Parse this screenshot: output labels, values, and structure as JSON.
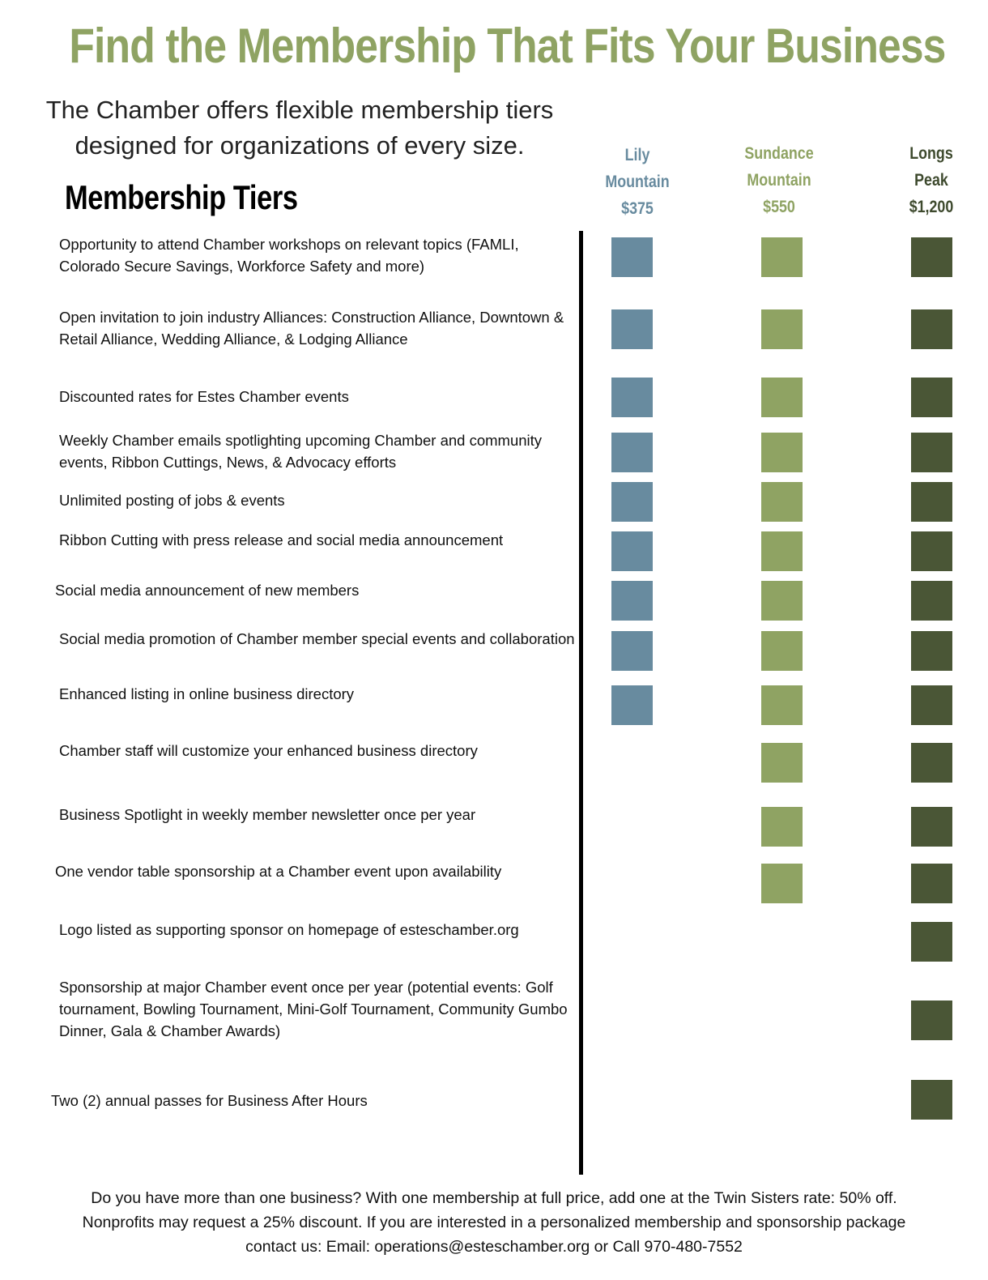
{
  "header": {
    "title": "Find the Membership That Fits Your Business",
    "intro_line1": "The Chamber offers flexible membership tiers",
    "intro_line2": "designed for organizations of every size.",
    "section_heading": "Membership Tiers"
  },
  "tiers": [
    {
      "name_line1": "Lily",
      "name_line2": "Mountain",
      "price": "$375",
      "color": "#688b9f"
    },
    {
      "name_line1": "Sundance",
      "name_line2": "Mountain",
      "price": "$550",
      "color": "#8fa363"
    },
    {
      "name_line1": "Longs",
      "name_line2": "Peak",
      "price": "$1,200",
      "color": "#4a5636"
    }
  ],
  "features": [
    {
      "text": "Opportunity to attend Chamber workshops on relevant topics (FAMLI, Colorado Secure Savings, Workforce Safety and more)",
      "included": [
        true,
        true,
        true
      ]
    },
    {
      "text": "Open invitation to join industry Alliances: Construction Alliance, Downtown & Retail Alliance, Wedding Alliance, & Lodging Alliance",
      "included": [
        true,
        true,
        true
      ]
    },
    {
      "text": "Discounted rates for Estes Chamber events",
      "included": [
        true,
        true,
        true
      ]
    },
    {
      "text": "Weekly Chamber emails spotlighting upcoming Chamber and community events, Ribbon Cuttings, News, & Advocacy efforts",
      "included": [
        true,
        true,
        true
      ]
    },
    {
      "text": "Unlimited posting of jobs & events",
      "included": [
        true,
        true,
        true
      ]
    },
    {
      "text": "Ribbon Cutting with press release and social media announcement",
      "included": [
        true,
        true,
        true
      ]
    },
    {
      "text": "Social media announcement of new members",
      "included": [
        true,
        true,
        true
      ]
    },
    {
      "text": "Social media promotion of Chamber member special events and collaboration",
      "included": [
        true,
        true,
        true
      ]
    },
    {
      "text": "Enhanced listing in online business directory",
      "included": [
        true,
        true,
        true
      ]
    },
    {
      "text": "Chamber staff will customize your enhanced business directory",
      "included": [
        false,
        true,
        true
      ]
    },
    {
      "text": "Business Spotlight in weekly member newsletter once per year",
      "included": [
        false,
        true,
        true
      ]
    },
    {
      "text": "One vendor table sponsorship at a Chamber event upon availability",
      "included": [
        false,
        true,
        true
      ]
    },
    {
      "text": "Logo listed as supporting sponsor on homepage of esteschamber.org",
      "included": [
        false,
        false,
        true
      ]
    },
    {
      "text": "Sponsorship at major Chamber event once per year (potential events: Golf  tournament, Bowling Tournament, Mini-Golf Tournament, Community Gumbo Dinner, Gala & Chamber Awards)",
      "included": [
        false,
        false,
        true
      ]
    },
    {
      "text": "Two (2) annual passes for Business After Hours",
      "included": [
        false,
        false,
        true
      ]
    }
  ],
  "footer": {
    "line1": "Do you have more than one business? With one membership at full price, add one at the Twin Sisters rate: 50% off.",
    "line2": "Nonprofits may request a 25% discount. If you are interested in a personalized membership and sponsorship package",
    "line3": "contact us: Email: operations@esteschamber.org or Call 970-480-7552"
  }
}
